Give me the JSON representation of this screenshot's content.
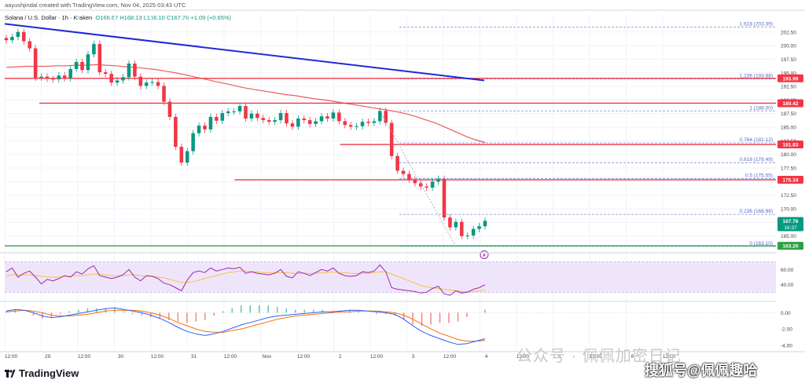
{
  "header": {
    "author_line": "aayushjindal created with TradingView.com, Nov 04, 2025 03:43 UTC",
    "symbol": "Solana / U.S. Dollar · 1h · Kraken",
    "ohlc": "O166.67 H168.13 L166.10 C167.76 +1.09 (+0.65%)"
  },
  "branding": {
    "name": "TradingView",
    "icon": "tradingview-logo-icon"
  },
  "watermarks": {
    "top": "公众号 · 佩佩加密日记",
    "bottom": "搜狐号@佩佩趣哈"
  },
  "colors": {
    "up": "#089981",
    "down": "#f23645",
    "trendline": "#1e2bd6",
    "ma": "#e84040",
    "resistance": "#f23645",
    "support": "#2ea043",
    "fib": "#7b8bd6",
    "rsi": "#9c27b0",
    "rsi_ma": "#f5c242",
    "macd": "#2962ff",
    "signal": "#ff6d00"
  },
  "chart_data": [
    {
      "type": "line",
      "title": "Solana / U.S. Dollar · 1h · Kraken",
      "ylim": [
        162.5,
        205.5
      ],
      "price_ticks": [
        165.0,
        167.5,
        170.0,
        172.5,
        175.0,
        177.5,
        180.0,
        182.5,
        185.0,
        187.5,
        190.0,
        192.5,
        195.0,
        197.5,
        200.0,
        202.5
      ],
      "time_labels": [
        "12:00",
        "29",
        "12:00",
        "30",
        "12:00",
        "31",
        "12:00",
        "Nov",
        "12:00",
        "2",
        "12:00",
        "3",
        "12:00",
        "4",
        "12:00",
        "5",
        "12:00",
        "6",
        "12:00"
      ],
      "price_labels": [
        {
          "value": 193.99,
          "text": "193.99",
          "color": "#f23645"
        },
        {
          "value": 189.42,
          "text": "189.42",
          "color": "#f23645"
        },
        {
          "value": 181.83,
          "text": "181.83",
          "color": "#f23645"
        },
        {
          "value": 175.34,
          "text": "175.34",
          "color": "#f23645"
        },
        {
          "value": 167.76,
          "text": "167.76",
          "color": "#089981",
          "sub": "16:37"
        },
        {
          "value": 163.2,
          "text": "163.20",
          "color": "#2ea043"
        }
      ],
      "horizontal_levels": [
        {
          "name": "resistance-193.99",
          "value": 193.99,
          "from": 0.0,
          "color": "#f23645"
        },
        {
          "name": "resistance-189.42",
          "value": 189.42,
          "from": 0.045,
          "color": "#f23645"
        },
        {
          "name": "resistance-181.83",
          "value": 181.83,
          "from": 0.435,
          "color": "#f23645"
        },
        {
          "name": "resistance-175.34",
          "value": 175.34,
          "from": 0.298,
          "color": "#f23645"
        },
        {
          "name": "support-163.20",
          "value": 163.2,
          "from": 0.0,
          "color": "#2ea043"
        }
      ],
      "fibonacci": [
        {
          "ratio": "1.618",
          "value": 203.39,
          "label": "1.618 (203.39)"
        },
        {
          "ratio": "1.236",
          "value": 193.88,
          "label": "1.236 (193.88)"
        },
        {
          "ratio": "1",
          "value": 188.0,
          "label": "1 (188.00)"
        },
        {
          "ratio": "0.764",
          "value": 182.12,
          "label": "0.764 (182.12)"
        },
        {
          "ratio": "0.618",
          "value": 178.49,
          "label": "0.618 (178.49)"
        },
        {
          "ratio": "0.5",
          "value": 175.55,
          "label": "0.5 (175.55)"
        },
        {
          "ratio": "0.236",
          "value": 168.98,
          "label": "0.236 (168.98)"
        },
        {
          "ratio": "0",
          "value": 163.1,
          "label": "0 (163.10)"
        }
      ],
      "trendline": {
        "start": [
          0,
          204.0
        ],
        "end": [
          1.0,
          193.6
        ]
      },
      "series": [
        {
          "kind": "close",
          "values": [
            201.0,
            201.6,
            202.5,
            200.8,
            199.5,
            194.1,
            194.3,
            193.9,
            193.8,
            194.5,
            194.0,
            195.7,
            197.0,
            195.5,
            198.4,
            200.3,
            195.1,
            194.8,
            193.2,
            193.6,
            194.2,
            196.7,
            194.3,
            192.6,
            193.2,
            193.3,
            192.6,
            189.7,
            186.9,
            181.4,
            178.5,
            180.6,
            183.9,
            185.3,
            184.6,
            186.9,
            186.2,
            187.6,
            187.9,
            187.9,
            188.9,
            186.6,
            187.5,
            186.7,
            186.3,
            186.0,
            186.3,
            187.6,
            185.7,
            185.1,
            186.6,
            186.3,
            185.6,
            186.1,
            187.0,
            186.6,
            187.7,
            186.1,
            185.4,
            185.1,
            185.2,
            186.0,
            185.8,
            186.1,
            188.0,
            185.8,
            179.7,
            177.0,
            176.4,
            175.4,
            174.7,
            174.1,
            173.9,
            175.0,
            175.5,
            168.4,
            166.6,
            167.6,
            165.0,
            165.1,
            166.3,
            166.8,
            167.8
          ]
        },
        {
          "kind": "ma",
          "name": "",
          "values": [
            196.0,
            196.1,
            196.2,
            196.2,
            196.2,
            196.3,
            196.3,
            196.4,
            196.4,
            196.5,
            196.4,
            196.3,
            196.1,
            196.0,
            195.8,
            195.6,
            195.3,
            195.0,
            194.6,
            194.2,
            193.8,
            193.4,
            193.0,
            192.6,
            192.2,
            191.9,
            191.6,
            191.3,
            191.0,
            190.8,
            190.5,
            190.2,
            190.0,
            189.7,
            189.4,
            189.1,
            188.8,
            188.5,
            188.2,
            187.9,
            187.5,
            187.0,
            186.4,
            185.8,
            185.0,
            184.2,
            183.4,
            182.7,
            182.2
          ]
        }
      ],
      "last_price": 167.76,
      "marker_icon": "lightning-icon"
    },
    {
      "type": "line",
      "name": "RSI",
      "ylim": [
        20,
        80
      ],
      "ticks": [
        40.0,
        60.0
      ],
      "band": [
        30,
        70
      ],
      "series": [
        {
          "name": "",
          "values": [
            57,
            62,
            50,
            55,
            58,
            50,
            41,
            47,
            45,
            48,
            52,
            50,
            57,
            54,
            61,
            65,
            52,
            50,
            48,
            50,
            53,
            60,
            50,
            45,
            52,
            51,
            48,
            42,
            40,
            36,
            32,
            46,
            56,
            58,
            56,
            62,
            58,
            60,
            62,
            61,
            63,
            55,
            57,
            55,
            54,
            53,
            55,
            60,
            51,
            49,
            57,
            55,
            52,
            56,
            60,
            58,
            62,
            55,
            52,
            51,
            52,
            57,
            56,
            58,
            66,
            57,
            36,
            34,
            33,
            32,
            31,
            29,
            30,
            35,
            38,
            28,
            26,
            32,
            29,
            30,
            34,
            36,
            40
          ]
        },
        {
          "name": "",
          "values": [
            52,
            53,
            53,
            53,
            53,
            52,
            51,
            50,
            50,
            50,
            51,
            51,
            52,
            52,
            53,
            54,
            54,
            53,
            52,
            52,
            52,
            53,
            53,
            52,
            51,
            51,
            50,
            49,
            47,
            45,
            43,
            43,
            44,
            46,
            48,
            50,
            52,
            54,
            56,
            57,
            58,
            58,
            57,
            57,
            56,
            56,
            56,
            56,
            56,
            55,
            55,
            55,
            55,
            55,
            56,
            56,
            57,
            56,
            56,
            55,
            55,
            55,
            55,
            56,
            57,
            57,
            54,
            51,
            48,
            45,
            42,
            39,
            37,
            36,
            35,
            34,
            33,
            32,
            31,
            31,
            31,
            32,
            33
          ]
        }
      ]
    },
    {
      "type": "bar",
      "name": "MACD",
      "ylim": [
        -4.6,
        1.0
      ],
      "ticks": [
        0.0,
        -2.0,
        -4.0
      ],
      "series": [
        {
          "name": "",
          "values": [
            0.2,
            0.4,
            0.3,
            0.0,
            -0.4,
            -0.6,
            -0.5,
            -0.3,
            -0.1,
            0.1,
            0.3,
            0.5,
            0.6,
            0.4,
            0.2,
            0.0,
            -0.3,
            -0.7,
            -1.2,
            -1.8,
            -2.3,
            -2.6,
            -2.8,
            -2.6,
            -2.3,
            -1.9,
            -1.5,
            -1.2,
            -0.9,
            -0.6,
            -0.4,
            -0.3,
            -0.2,
            -0.1,
            0.0,
            0.1,
            0.1,
            0.2,
            0.3,
            0.3,
            0.2,
            0.1,
            0.0,
            -0.2,
            -0.8,
            -1.6,
            -2.3,
            -2.8,
            -3.2,
            -3.6,
            -3.9,
            -3.8,
            -3.5,
            -3.2
          ]
        },
        {
          "name": "",
          "values": [
            0.1,
            0.2,
            0.3,
            0.2,
            0.0,
            -0.3,
            -0.4,
            -0.4,
            -0.3,
            -0.2,
            0.0,
            0.2,
            0.3,
            0.3,
            0.3,
            0.2,
            0.0,
            -0.3,
            -0.7,
            -1.2,
            -1.6,
            -2.0,
            -2.3,
            -2.4,
            -2.4,
            -2.2,
            -2.0,
            -1.7,
            -1.4,
            -1.1,
            -0.8,
            -0.6,
            -0.4,
            -0.3,
            -0.2,
            -0.1,
            0.0,
            0.1,
            0.1,
            0.2,
            0.2,
            0.2,
            0.1,
            0.0,
            -0.3,
            -0.8,
            -1.4,
            -2.0,
            -2.5,
            -2.9,
            -3.3,
            -3.5,
            -3.5,
            -3.4
          ]
        }
      ]
    }
  ]
}
